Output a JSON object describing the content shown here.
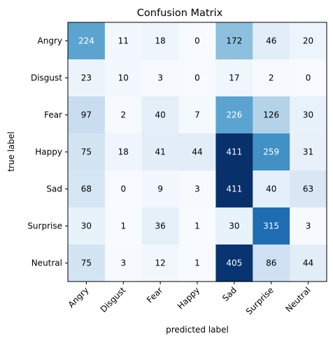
{
  "chart_data": {
    "type": "heatmap",
    "title": "Confusion Matrix",
    "xlabel": "predicted label",
    "ylabel": "true label",
    "x_categories": [
      "Angry",
      "Disgust",
      "Fear",
      "Happy",
      "Sad",
      "Surprise",
      "Neutral"
    ],
    "y_categories": [
      "Angry",
      "Disgust",
      "Fear",
      "Happy",
      "Sad",
      "Surprise",
      "Neutral"
    ],
    "values": [
      [
        224,
        11,
        18,
        0,
        172,
        46,
        20
      ],
      [
        23,
        10,
        3,
        0,
        17,
        2,
        0
      ],
      [
        97,
        2,
        40,
        7,
        226,
        126,
        30
      ],
      [
        75,
        18,
        41,
        44,
        411,
        259,
        31
      ],
      [
        68,
        0,
        9,
        3,
        411,
        40,
        63
      ],
      [
        30,
        1,
        36,
        1,
        30,
        315,
        3
      ],
      [
        75,
        3,
        12,
        1,
        405,
        86,
        44
      ]
    ],
    "colormap": "Blues",
    "vmin": 0,
    "vmax": 411,
    "grid": false
  }
}
